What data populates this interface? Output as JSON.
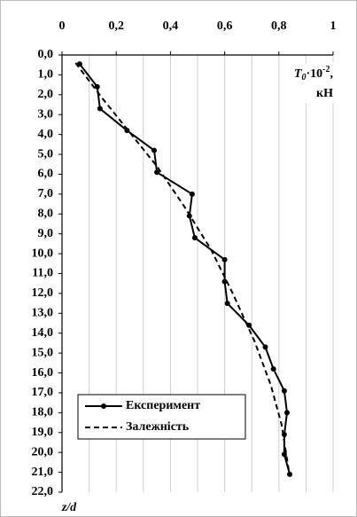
{
  "chart_data": {
    "type": "line",
    "x_label": {
      "main": "T",
      "sub": "0",
      "mid": "·10",
      "sup": "-2",
      "end": ",",
      "unit": "кН"
    },
    "y_label": "z/d",
    "xlim": [
      0,
      1
    ],
    "xticks": [
      0,
      {
        "value": 0.2,
        "label": "0,2"
      },
      {
        "value": 0.4,
        "label": "0,4"
      },
      {
        "value": 0.6,
        "label": "0,6"
      },
      {
        "value": 0.8,
        "label": "0,8"
      },
      1
    ],
    "ylim": [
      0,
      22
    ],
    "y_inverted": true,
    "yticks": [
      {
        "value": 0,
        "label": "0,0"
      },
      {
        "value": 1,
        "label": "1,0"
      },
      {
        "value": 2,
        "label": "2,0"
      },
      {
        "value": 3,
        "label": "3,0"
      },
      {
        "value": 4,
        "label": "4,0"
      },
      {
        "value": 5,
        "label": "5,0"
      },
      {
        "value": 6,
        "label": "6,0"
      },
      {
        "value": 7,
        "label": "7,0"
      },
      {
        "value": 8,
        "label": "8,0"
      },
      {
        "value": 9,
        "label": "9,0"
      },
      {
        "value": 10,
        "label": "10,0"
      },
      {
        "value": 11,
        "label": "11,0"
      },
      {
        "value": 12,
        "label": "12,0"
      },
      {
        "value": 13,
        "label": "13,0"
      },
      {
        "value": 14,
        "label": "14,0"
      },
      {
        "value": 15,
        "label": "15,0"
      },
      {
        "value": 16,
        "label": "16,0"
      },
      {
        "value": 17,
        "label": "17,0"
      },
      {
        "value": 18,
        "label": "18,0"
      },
      {
        "value": 19,
        "label": "19,0"
      },
      {
        "value": 20,
        "label": "20,0"
      },
      {
        "value": 21,
        "label": "21,0"
      },
      {
        "value": 22,
        "label": "22,0"
      }
    ],
    "xgrid": [
      0.1,
      0.2,
      0.3,
      0.4,
      0.5,
      0.6,
      0.7,
      0.8,
      0.9,
      1
    ],
    "legend": "lower left",
    "series": [
      {
        "name": "Експеримент",
        "color": "#000000",
        "dash": false,
        "markers": true,
        "x": [
          0.065,
          0.13,
          0.14,
          0.24,
          0.34,
          0.35,
          0.48,
          0.47,
          0.49,
          0.6,
          0.6,
          0.61,
          0.69,
          0.75,
          0.78,
          0.82,
          0.83,
          0.82,
          0.82,
          0.84
        ],
        "y": [
          0.45,
          1.6,
          2.7,
          3.8,
          4.8,
          5.9,
          7.0,
          8.1,
          9.2,
          10.3,
          11.4,
          12.5,
          13.6,
          14.7,
          15.8,
          16.9,
          18.0,
          19.1,
          20.1,
          21.1
        ]
      },
      {
        "name": "Залежність",
        "color": "#000000",
        "dash": true,
        "markers": false,
        "x": [
          0.05,
          0.15,
          0.25,
          0.35,
          0.45,
          0.55,
          0.63,
          0.71,
          0.77,
          0.81,
          0.84
        ],
        "y": [
          0.4,
          2.2,
          3.9,
          5.6,
          7.6,
          9.8,
          12.0,
          14.4,
          16.6,
          18.6,
          21.2
        ]
      }
    ]
  }
}
